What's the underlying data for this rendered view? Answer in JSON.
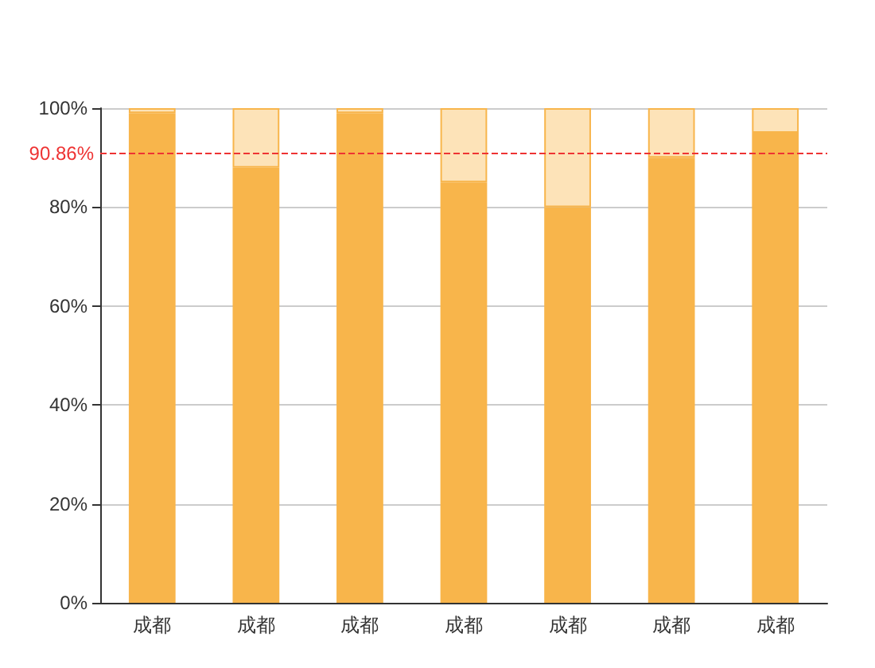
{
  "chart_data": {
    "type": "bar",
    "stacked": true,
    "categories": [
      "成都",
      "成都",
      "成都",
      "成都",
      "成都",
      "成都",
      "成都"
    ],
    "series": [
      {
        "color": "#f8b54b",
        "values": [
          99,
          88,
          99,
          85,
          80,
          90,
          95
        ]
      },
      {
        "color": "#fde3b8",
        "values": [
          1,
          12,
          1,
          15,
          20,
          10,
          5
        ]
      }
    ],
    "ylim": [
      0,
      100
    ],
    "yticks": [
      {
        "value": 0,
        "label": "0%"
      },
      {
        "value": 20,
        "label": "20%"
      },
      {
        "value": 40,
        "label": "40%"
      },
      {
        "value": 60,
        "label": "60%"
      },
      {
        "value": 80,
        "label": "80%"
      },
      {
        "value": 100,
        "label": "100%"
      }
    ],
    "grid": "y",
    "ref_lines": [
      {
        "axis": "y",
        "value": 90.86,
        "label": "90.86%",
        "color": "#ee3333",
        "line_style": "dashed"
      }
    ]
  }
}
